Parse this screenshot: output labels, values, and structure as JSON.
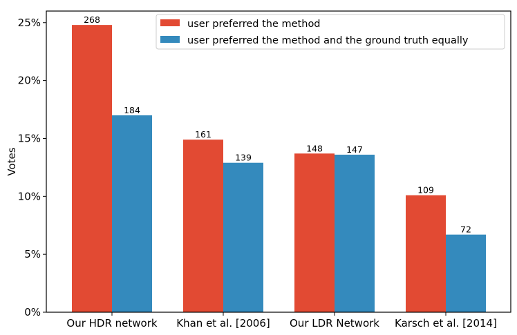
{
  "chart_data": {
    "type": "bar",
    "title": "",
    "xlabel": "",
    "ylabel": "Votes",
    "ylim": [
      0,
      26
    ],
    "yticks": [
      0,
      5,
      10,
      15,
      20,
      25
    ],
    "ytick_labels": [
      "0%",
      "5%",
      "10%",
      "15%",
      "20%",
      "25%"
    ],
    "categories": [
      "Our HDR network",
      "Khan et al. [2006]",
      "Our LDR Network",
      "Karsch et al. [2014]"
    ],
    "series": [
      {
        "name": "user preferred the method",
        "color": "#e24a33",
        "values": [
          24.8,
          14.9,
          13.7,
          10.1
        ],
        "labels": [
          "268",
          "161",
          "148",
          "109"
        ]
      },
      {
        "name": "user preferred the method and the ground truth equally",
        "color": "#348abd",
        "values": [
          17.0,
          12.9,
          13.6,
          6.7
        ],
        "labels": [
          "184",
          "139",
          "147",
          "72"
        ]
      }
    ],
    "legend_position": "top-right",
    "grid": false
  }
}
